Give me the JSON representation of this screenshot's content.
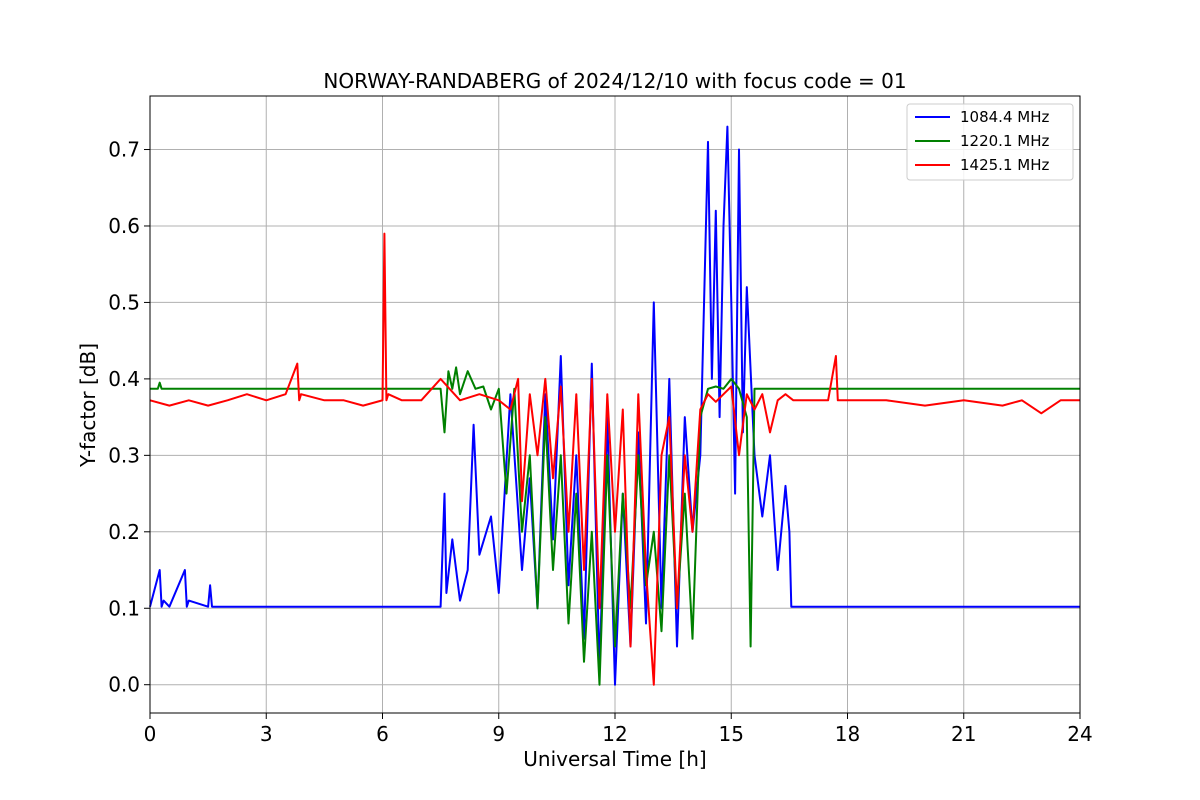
{
  "chart_data": {
    "type": "line",
    "title": "NORWAY-RANDABERG of 2024/12/10 with focus code = 01",
    "xlabel": "Universal Time [h]",
    "ylabel": "Y-factor [dB]",
    "xlim": [
      0,
      24
    ],
    "ylim": [
      -0.037,
      0.77
    ],
    "xticks": [
      0,
      3,
      6,
      9,
      12,
      15,
      18,
      21,
      24
    ],
    "xtick_labels": [
      "0",
      "3",
      "6",
      "9",
      "12",
      "15",
      "18",
      "21",
      "24"
    ],
    "yticks": [
      0.0,
      0.1,
      0.2,
      0.3,
      0.4,
      0.5,
      0.6,
      0.7
    ],
    "ytick_labels": [
      "0.0",
      "0.1",
      "0.2",
      "0.3",
      "0.4",
      "0.5",
      "0.6",
      "0.7"
    ],
    "grid": true,
    "legend_position": "top-right",
    "series": [
      {
        "name": "1084.4 MHz",
        "color": "#0000ff",
        "x": [
          0,
          0.25,
          0.3,
          0.35,
          0.5,
          0.9,
          0.95,
          1.0,
          1.5,
          1.55,
          1.6,
          2.0,
          3.0,
          4.0,
          5.0,
          6.0,
          7.0,
          7.5,
          7.6,
          7.65,
          7.8,
          8.0,
          8.2,
          8.35,
          8.5,
          8.8,
          9.0,
          9.3,
          9.6,
          9.8,
          10.0,
          10.2,
          10.4,
          10.6,
          10.8,
          11.0,
          11.2,
          11.4,
          11.6,
          11.8,
          12.0,
          12.2,
          12.4,
          12.6,
          12.8,
          13.0,
          13.2,
          13.4,
          13.6,
          13.8,
          14.0,
          14.2,
          14.4,
          14.5,
          14.6,
          14.7,
          14.8,
          14.9,
          15.0,
          15.1,
          15.2,
          15.3,
          15.4,
          15.6,
          15.8,
          16.0,
          16.2,
          16.4,
          16.5,
          16.55,
          17.0,
          18.0,
          19.0,
          20.0,
          21.0,
          22.0,
          23.0,
          24.0
        ],
        "y": [
          0.102,
          0.15,
          0.102,
          0.11,
          0.102,
          0.15,
          0.102,
          0.11,
          0.102,
          0.13,
          0.102,
          0.102,
          0.102,
          0.102,
          0.102,
          0.102,
          0.102,
          0.102,
          0.25,
          0.12,
          0.19,
          0.11,
          0.15,
          0.34,
          0.17,
          0.22,
          0.12,
          0.38,
          0.15,
          0.27,
          0.1,
          0.38,
          0.19,
          0.43,
          0.13,
          0.3,
          0.06,
          0.42,
          0.02,
          0.35,
          0.0,
          0.25,
          0.05,
          0.33,
          0.08,
          0.5,
          0.1,
          0.4,
          0.05,
          0.35,
          0.2,
          0.3,
          0.71,
          0.4,
          0.62,
          0.35,
          0.6,
          0.73,
          0.5,
          0.25,
          0.7,
          0.33,
          0.52,
          0.3,
          0.22,
          0.3,
          0.15,
          0.26,
          0.2,
          0.102,
          0.102,
          0.102,
          0.102,
          0.102,
          0.102,
          0.102,
          0.102,
          0.102
        ]
      },
      {
        "name": "1220.1 MHz",
        "color": "#008000",
        "x": [
          0,
          0.2,
          0.25,
          0.3,
          1.0,
          2.0,
          3.0,
          4.0,
          5.0,
          6.0,
          7.0,
          7.5,
          7.6,
          7.7,
          7.8,
          7.9,
          8.0,
          8.2,
          8.4,
          8.6,
          8.8,
          9.0,
          9.2,
          9.4,
          9.6,
          9.8,
          10.0,
          10.2,
          10.4,
          10.6,
          10.8,
          11.0,
          11.2,
          11.4,
          11.6,
          11.8,
          12.0,
          12.2,
          12.4,
          12.6,
          12.8,
          13.0,
          13.2,
          13.4,
          13.6,
          13.8,
          14.0,
          14.2,
          14.4,
          14.6,
          14.8,
          15.0,
          15.2,
          15.4,
          15.5,
          15.6,
          15.8,
          16.0,
          16.5,
          17.0,
          18.0,
          19.0,
          20.0,
          21.0,
          22.0,
          23.0,
          24.0
        ],
        "y": [
          0.387,
          0.387,
          0.395,
          0.387,
          0.387,
          0.387,
          0.387,
          0.387,
          0.387,
          0.387,
          0.387,
          0.387,
          0.33,
          0.41,
          0.387,
          0.415,
          0.38,
          0.41,
          0.387,
          0.39,
          0.36,
          0.387,
          0.25,
          0.387,
          0.2,
          0.3,
          0.1,
          0.35,
          0.15,
          0.3,
          0.08,
          0.25,
          0.03,
          0.2,
          0.0,
          0.3,
          0.05,
          0.25,
          0.1,
          0.3,
          0.13,
          0.2,
          0.07,
          0.3,
          0.1,
          0.25,
          0.06,
          0.35,
          0.387,
          0.39,
          0.387,
          0.4,
          0.387,
          0.35,
          0.05,
          0.387,
          0.387,
          0.387,
          0.387,
          0.387,
          0.387,
          0.387,
          0.387,
          0.387,
          0.387,
          0.387,
          0.387
        ]
      },
      {
        "name": "1425.1 MHz",
        "color": "#ff0000",
        "x": [
          0,
          0.5,
          1.0,
          1.5,
          2.0,
          2.5,
          3.0,
          3.5,
          3.8,
          3.85,
          3.9,
          4.5,
          5.0,
          5.5,
          6.0,
          6.05,
          6.1,
          6.15,
          6.5,
          7.0,
          7.5,
          8.0,
          8.5,
          9.0,
          9.3,
          9.5,
          9.6,
          9.8,
          10.0,
          10.2,
          10.4,
          10.6,
          10.8,
          11.0,
          11.2,
          11.4,
          11.6,
          11.8,
          12.0,
          12.2,
          12.4,
          12.6,
          12.8,
          13.0,
          13.2,
          13.4,
          13.6,
          13.8,
          14.0,
          14.2,
          14.4,
          14.6,
          14.8,
          15.0,
          15.2,
          15.4,
          15.6,
          15.8,
          16.0,
          16.2,
          16.4,
          16.6,
          17.0,
          17.5,
          17.7,
          17.75,
          18.0,
          19.0,
          20.0,
          21.0,
          22.0,
          22.5,
          23.0,
          23.5,
          24.0
        ],
        "y": [
          0.372,
          0.365,
          0.372,
          0.365,
          0.372,
          0.38,
          0.372,
          0.38,
          0.42,
          0.372,
          0.38,
          0.372,
          0.372,
          0.365,
          0.372,
          0.59,
          0.372,
          0.38,
          0.372,
          0.372,
          0.4,
          0.372,
          0.38,
          0.372,
          0.36,
          0.4,
          0.24,
          0.38,
          0.3,
          0.4,
          0.27,
          0.39,
          0.2,
          0.38,
          0.15,
          0.4,
          0.1,
          0.38,
          0.2,
          0.36,
          0.05,
          0.38,
          0.15,
          0.0,
          0.3,
          0.35,
          0.1,
          0.3,
          0.2,
          0.36,
          0.38,
          0.37,
          0.38,
          0.39,
          0.3,
          0.38,
          0.36,
          0.38,
          0.33,
          0.372,
          0.38,
          0.372,
          0.372,
          0.372,
          0.43,
          0.372,
          0.372,
          0.372,
          0.365,
          0.372,
          0.365,
          0.372,
          0.355,
          0.372,
          0.372
        ]
      }
    ]
  }
}
